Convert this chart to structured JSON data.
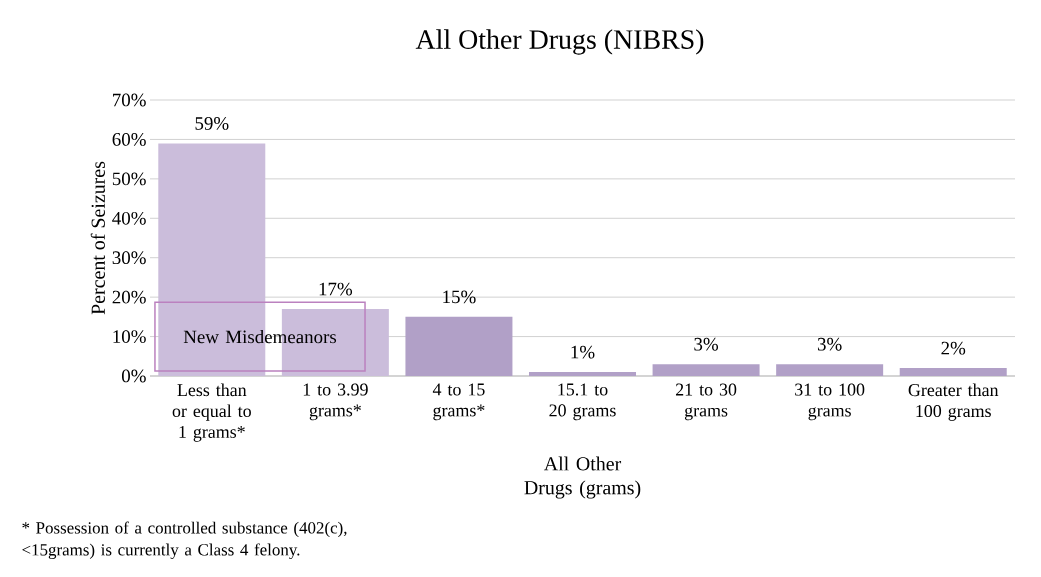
{
  "chart_data": {
    "type": "bar",
    "title": "All Other Drugs (NIBRS)",
    "xlabel": "All Other Drugs (grams)",
    "ylabel": "Percent of Seizures",
    "categories": [
      "Less than or equal to 1 grams*",
      "1 to 3.99 grams*",
      "4 to 15 grams*",
      "15.1 to 20 grams",
      "21 to 30 grams",
      "31 to 100 grams",
      "Greater than 100 grams"
    ],
    "values": [
      59,
      17,
      15,
      1,
      3,
      3,
      2
    ],
    "value_labels": [
      "59%",
      "17%",
      "15%",
      "1%",
      "3%",
      "3%",
      "2%"
    ],
    "colors": [
      "#cbbddb",
      "#cbbddb",
      "#b1a0c7",
      "#b1a0c7",
      "#b1a0c7",
      "#b1a0c7",
      "#b1a0c7"
    ],
    "ylim": [
      0,
      70
    ],
    "yticks": [
      {
        "value": 0,
        "label": "0%"
      },
      {
        "value": 10,
        "label": "10%"
      },
      {
        "value": 20,
        "label": "20%"
      },
      {
        "value": 30,
        "label": "30%"
      },
      {
        "value": 40,
        "label": "40%"
      },
      {
        "value": 50,
        "label": "50%"
      },
      {
        "value": 60,
        "label": "60%"
      },
      {
        "value": 70,
        "label": "70%"
      }
    ],
    "grid": "y",
    "annotations": [
      "New Misdemeanors",
      "* Possession of a controlled substance (402(c), <15grams) is currently a Class 4 felony."
    ]
  }
}
